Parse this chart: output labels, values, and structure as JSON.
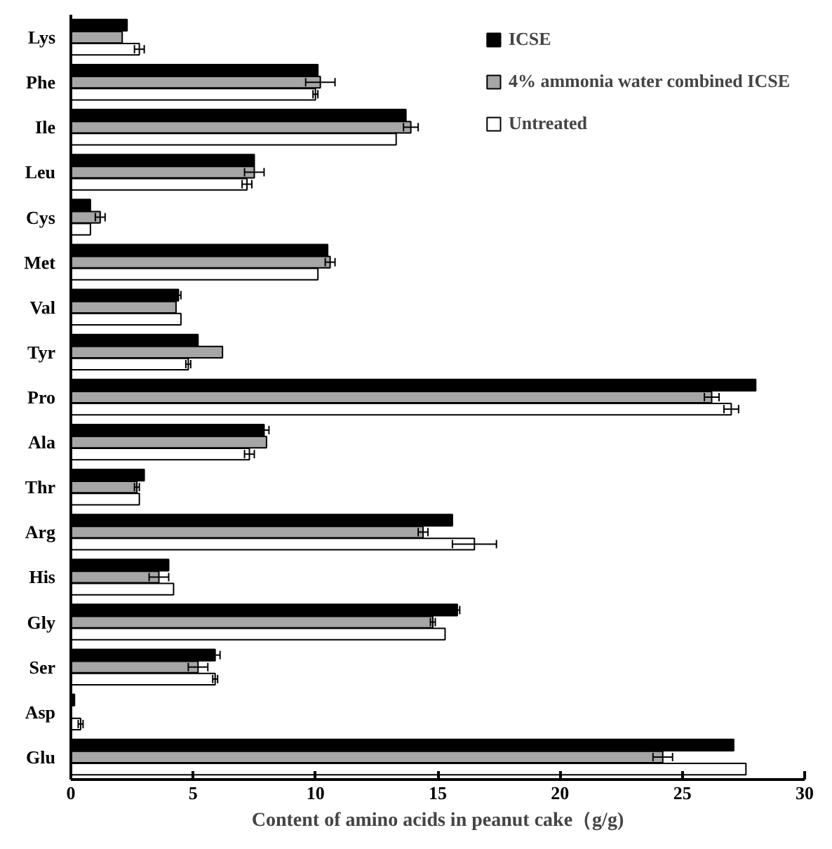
{
  "chart_data": {
    "type": "bar",
    "orientation": "horizontal",
    "xlabel": "Content of amino acids in peanut cake（g/g)",
    "categories": [
      "Lys",
      "Phe",
      "Ile",
      "Leu",
      "Cys",
      "Met",
      "Val",
      "Tyr",
      "Pro",
      "Ala",
      "Thr",
      "Arg",
      "His",
      "Gly",
      "Ser",
      "Asp",
      "Glu"
    ],
    "series": [
      {
        "name": "ICSE",
        "color": "#000000",
        "values": [
          2.3,
          10.1,
          13.7,
          7.5,
          0.8,
          10.5,
          4.4,
          5.2,
          28.0,
          7.9,
          3.0,
          15.6,
          4.0,
          15.8,
          5.9,
          0.15,
          27.1
        ],
        "errors": [
          null,
          null,
          null,
          null,
          null,
          null,
          0.1,
          null,
          null,
          0.2,
          null,
          null,
          null,
          0.1,
          0.2,
          null,
          null
        ]
      },
      {
        "name": "4% ammonia water combined ICSE",
        "color": "#a6a6a6",
        "values": [
          2.1,
          10.2,
          13.9,
          7.5,
          1.2,
          10.6,
          4.3,
          6.2,
          26.2,
          8.0,
          2.7,
          14.4,
          3.6,
          14.8,
          5.2,
          null,
          24.2
        ],
        "errors": [
          null,
          0.6,
          0.3,
          0.4,
          0.2,
          0.2,
          null,
          null,
          0.3,
          null,
          0.1,
          0.2,
          0.4,
          0.1,
          0.4,
          null,
          0.4
        ]
      },
      {
        "name": "Untreated",
        "color": "#ffffff",
        "values": [
          2.8,
          10.0,
          13.3,
          7.2,
          0.8,
          10.1,
          4.5,
          4.8,
          27.0,
          7.3,
          2.8,
          16.5,
          4.2,
          15.3,
          5.9,
          0.4,
          27.6
        ],
        "errors": [
          0.2,
          0.1,
          null,
          0.2,
          null,
          null,
          null,
          0.1,
          0.3,
          0.2,
          null,
          0.9,
          null,
          null,
          0.1,
          0.1,
          null
        ]
      }
    ],
    "xlim": [
      0,
      30
    ],
    "xticks": [
      0,
      5,
      10,
      15,
      20,
      25,
      30
    ],
    "grid": false,
    "legend": "top right"
  }
}
